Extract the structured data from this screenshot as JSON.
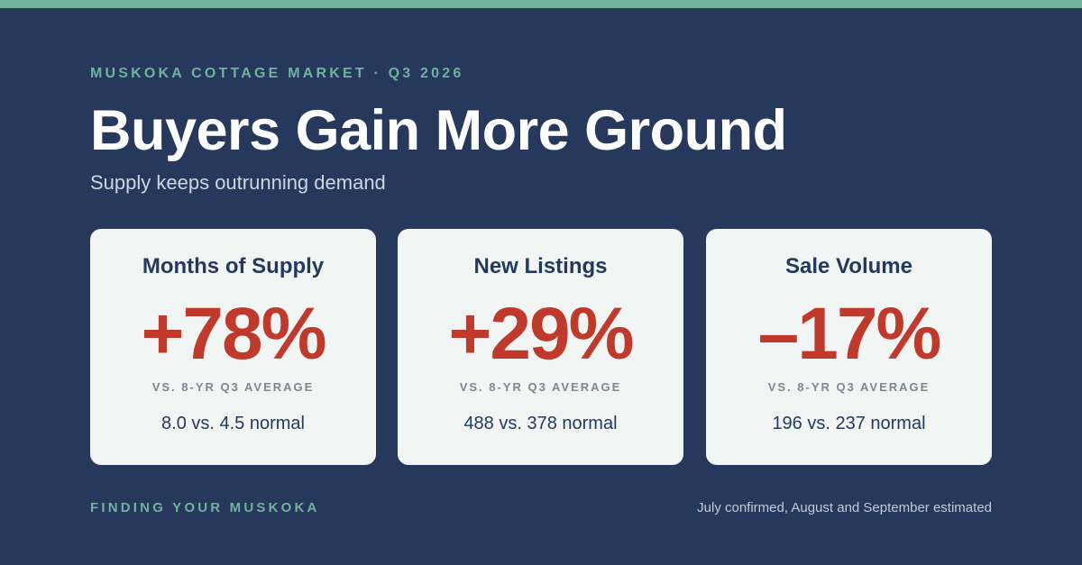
{
  "colors": {
    "background": "#26395d",
    "accent": "#6eb39a",
    "card_background": "#f1f5f4",
    "value_red": "#c0392b",
    "text_dark": "#23395e"
  },
  "header": {
    "eyebrow": "MUSKOKA COTTAGE MARKET · Q3 2026",
    "title": "Buyers Gain More Ground",
    "subtitle": "Supply keeps outrunning demand"
  },
  "cards": [
    {
      "title": "Months of Supply",
      "value": "+78%",
      "compare": "VS. 8-YR Q3 AVERAGE",
      "detail": "8.0 vs. 4.5 normal"
    },
    {
      "title": "New Listings",
      "value": "+29%",
      "compare": "VS. 8-YR Q3 AVERAGE",
      "detail": "488 vs. 378 normal"
    },
    {
      "title": "Sale Volume",
      "value": "–17%",
      "compare": "VS. 8-YR Q3 AVERAGE",
      "detail": "196 vs. 237 normal"
    }
  ],
  "footer": {
    "brand": "FINDING YOUR MUSKOKA",
    "note": "July confirmed, August and September estimated"
  }
}
